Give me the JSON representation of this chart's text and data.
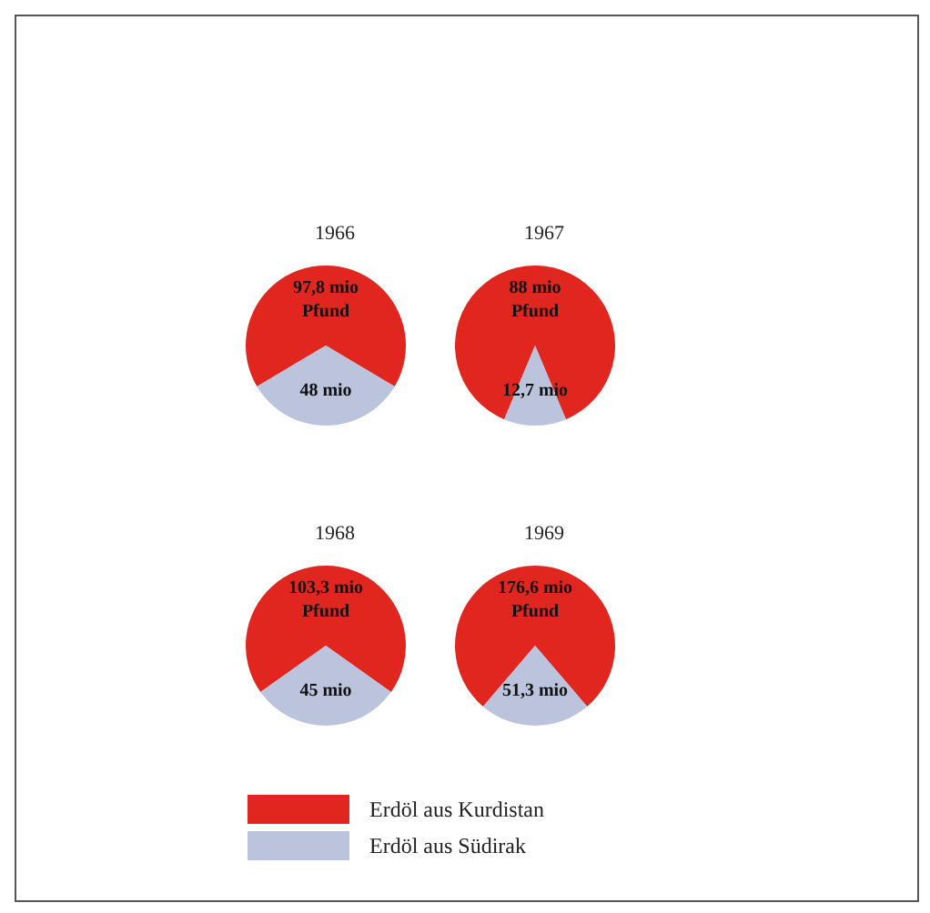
{
  "chart_data": {
    "type": "pie",
    "categories": [
      "Erdöl aus Kurdistan",
      "Erdöl aus Südirak"
    ],
    "colors": [
      "#e0261f",
      "#bcc3dd"
    ],
    "legend": "bottom",
    "series": [
      {
        "name": "1966",
        "values": [
          97.8,
          48
        ],
        "value_labels": [
          "97,8 mio\nPfund",
          "48 mio"
        ]
      },
      {
        "name": "1967",
        "values": [
          88,
          12.7
        ],
        "value_labels": [
          "88 mio\nPfund",
          "12,7 mio"
        ]
      },
      {
        "name": "1968",
        "values": [
          103.3,
          45
        ],
        "value_labels": [
          "103,3 mio\nPfund",
          "45 mio"
        ]
      },
      {
        "name": "1969",
        "values": [
          176.6,
          51.3
        ],
        "value_labels": [
          "176,6 mio\nPfund",
          "51,3 mio"
        ]
      }
    ]
  }
}
